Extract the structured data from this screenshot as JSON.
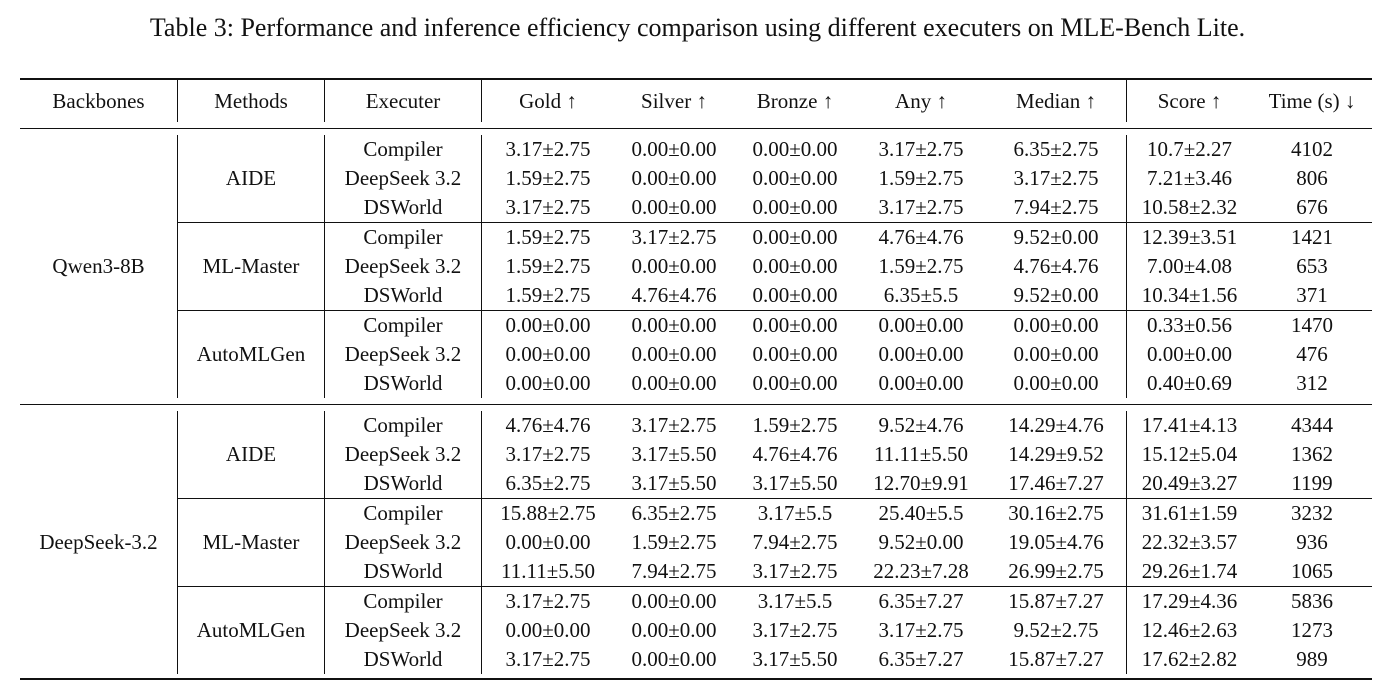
{
  "caption": "Table 3: Performance and inference efficiency comparison using different executers on MLE-Bench Lite.",
  "headers": [
    "Backbones",
    "Methods",
    "Executer",
    "Gold ↑",
    "Silver ↑",
    "Bronze ↑",
    "Any ↑",
    "Median ↑",
    "Score ↑",
    "Time (s) ↓"
  ],
  "groups": [
    {
      "backbone": "Qwen3-8B",
      "methods": [
        {
          "method": "AIDE",
          "rows": [
            [
              "Compiler",
              "3.17±2.75",
              "0.00±0.00",
              "0.00±0.00",
              "3.17±2.75",
              "6.35±2.75",
              "10.7±2.27",
              "4102"
            ],
            [
              "DeepSeek 3.2",
              "1.59±2.75",
              "0.00±0.00",
              "0.00±0.00",
              "1.59±2.75",
              "3.17±2.75",
              "7.21±3.46",
              "806"
            ],
            [
              "DSWorld",
              "3.17±2.75",
              "0.00±0.00",
              "0.00±0.00",
              "3.17±2.75",
              "7.94±2.75",
              "10.58±2.32",
              "676"
            ]
          ]
        },
        {
          "method": "ML-Master",
          "rows": [
            [
              "Compiler",
              "1.59±2.75",
              "3.17±2.75",
              "0.00±0.00",
              "4.76±4.76",
              "9.52±0.00",
              "12.39±3.51",
              "1421"
            ],
            [
              "DeepSeek 3.2",
              "1.59±2.75",
              "0.00±0.00",
              "0.00±0.00",
              "1.59±2.75",
              "4.76±4.76",
              "7.00±4.08",
              "653"
            ],
            [
              "DSWorld",
              "1.59±2.75",
              "4.76±4.76",
              "0.00±0.00",
              "6.35±5.5",
              "9.52±0.00",
              "10.34±1.56",
              "371"
            ]
          ]
        },
        {
          "method": "AutoMLGen",
          "rows": [
            [
              "Compiler",
              "0.00±0.00",
              "0.00±0.00",
              "0.00±0.00",
              "0.00±0.00",
              "0.00±0.00",
              "0.33±0.56",
              "1470"
            ],
            [
              "DeepSeek 3.2",
              "0.00±0.00",
              "0.00±0.00",
              "0.00±0.00",
              "0.00±0.00",
              "0.00±0.00",
              "0.00±0.00",
              "476"
            ],
            [
              "DSWorld",
              "0.00±0.00",
              "0.00±0.00",
              "0.00±0.00",
              "0.00±0.00",
              "0.00±0.00",
              "0.40±0.69",
              "312"
            ]
          ]
        }
      ]
    },
    {
      "backbone": "DeepSeek-3.2",
      "methods": [
        {
          "method": "AIDE",
          "rows": [
            [
              "Compiler",
              "4.76±4.76",
              "3.17±2.75",
              "1.59±2.75",
              "9.52±4.76",
              "14.29±4.76",
              "17.41±4.13",
              "4344"
            ],
            [
              "DeepSeek 3.2",
              "3.17±2.75",
              "3.17±5.50",
              "4.76±4.76",
              "11.11±5.50",
              "14.29±9.52",
              "15.12±5.04",
              "1362"
            ],
            [
              "DSWorld",
              "6.35±2.75",
              "3.17±5.50",
              "3.17±5.50",
              "12.70±9.91",
              "17.46±7.27",
              "20.49±3.27",
              "1199"
            ]
          ]
        },
        {
          "method": "ML-Master",
          "rows": [
            [
              "Compiler",
              "15.88±2.75",
              "6.35±2.75",
              "3.17±5.5",
              "25.40±5.5",
              "30.16±2.75",
              "31.61±1.59",
              "3232"
            ],
            [
              "DeepSeek 3.2",
              "0.00±0.00",
              "1.59±2.75",
              "7.94±2.75",
              "9.52±0.00",
              "19.05±4.76",
              "22.32±3.57",
              "936"
            ],
            [
              "DSWorld",
              "11.11±5.50",
              "7.94±2.75",
              "3.17±2.75",
              "22.23±7.28",
              "26.99±2.75",
              "29.26±1.74",
              "1065"
            ]
          ]
        },
        {
          "method": "AutoMLGen",
          "rows": [
            [
              "Compiler",
              "3.17±2.75",
              "0.00±0.00",
              "3.17±5.5",
              "6.35±7.27",
              "15.87±7.27",
              "17.29±4.36",
              "5836"
            ],
            [
              "DeepSeek 3.2",
              "0.00±0.00",
              "0.00±0.00",
              "3.17±2.75",
              "3.17±2.75",
              "9.52±2.75",
              "12.46±2.63",
              "1273"
            ],
            [
              "DSWorld",
              "3.17±2.75",
              "0.00±0.00",
              "3.17±5.50",
              "6.35±7.27",
              "15.87±7.27",
              "17.62±2.82",
              "989"
            ]
          ]
        }
      ]
    }
  ]
}
